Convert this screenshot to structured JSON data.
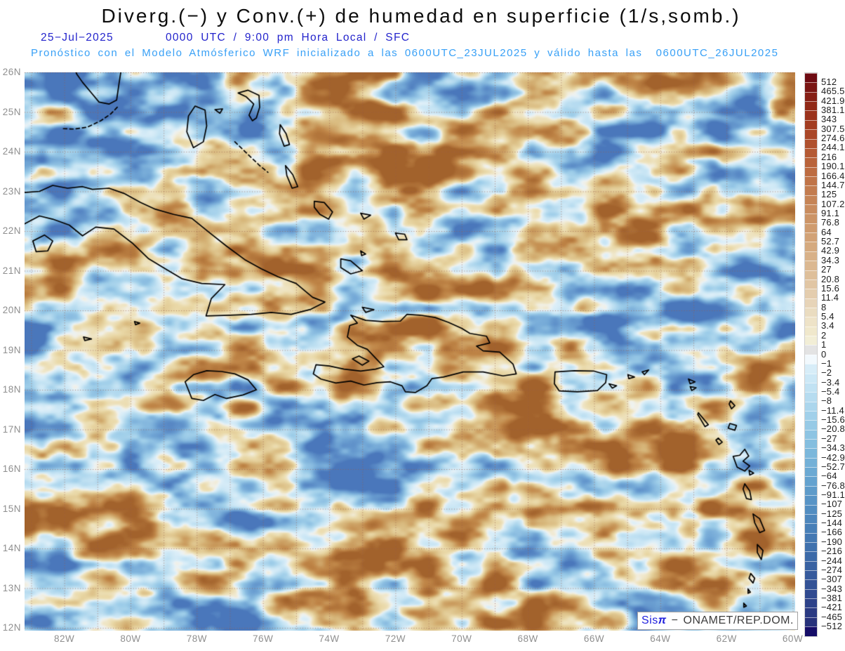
{
  "header": {
    "title": "Diverg.(−) y Conv.(+) de humedad en superficie (1/s,somb.)",
    "date": "25−Jul−2025",
    "valid_time": "0000 UTC / 9:00 pm Hora Local / SFC",
    "forecast_note": "Pronóstico con el Modelo Atmósferico WRF inicializado a las 0600UTC_23JUL2025 y válido hasta las  0600UTC_26JUL2025"
  },
  "map": {
    "lat_labels": [
      "26N",
      "25N",
      "24N",
      "23N",
      "22N",
      "21N",
      "20N",
      "19N",
      "18N",
      "17N",
      "16N",
      "15N",
      "14N",
      "13N",
      "12N"
    ],
    "lon_labels": [
      "82W",
      "80W",
      "78W",
      "76W",
      "74W",
      "72W",
      "70W",
      "68W",
      "66W",
      "64W",
      "62W",
      "60W"
    ]
  },
  "colorbar": {
    "labels": [
      "512",
      "465.5",
      "421.9",
      "381.1",
      "343",
      "307.5",
      "274.6",
      "244.1",
      "216",
      "190.1",
      "166.4",
      "144.7",
      "125",
      "107.2",
      "91.1",
      "76.8",
      "64",
      "52.7",
      "42.9",
      "34.3",
      "27",
      "20.8",
      "15.6",
      "11.4",
      "8",
      "5.4",
      "3.4",
      "2",
      "1",
      "0",
      "−1",
      "−2",
      "−3.4",
      "−5.4",
      "−8",
      "−11.4",
      "−15.6",
      "−20.8",
      "−27",
      "−34.3",
      "−42.9",
      "−52.7",
      "−64",
      "−76.8",
      "−91.1",
      "−107",
      "−125",
      "−144",
      "−166",
      "−190",
      "−216",
      "−244",
      "−274",
      "−307",
      "−343",
      "−381",
      "−421",
      "−465",
      "−512"
    ],
    "colors": [
      "#6e0b12",
      "#7a1513",
      "#861f15",
      "#912917",
      "#9b331c",
      "#a33d22",
      "#aa4728",
      "#b0512e",
      "#b55a34",
      "#b9633a",
      "#bd6c41",
      "#c07448",
      "#c37c4f",
      "#c68456",
      "#c98c5e",
      "#cc9466",
      "#cf9b6e",
      "#d2a276",
      "#d5aa7f",
      "#d8b188",
      "#dbb891",
      "#debf9a",
      "#e1c6a4",
      "#e4cdae",
      "#e7d4b8",
      "#eadcc0",
      "#eee3c8",
      "#f0e8cc",
      "#f2eed6",
      "#e3e3e3",
      "#f2f9fd",
      "#d7edf8",
      "#cce8f6",
      "#c1e2f3",
      "#b6dcf0",
      "#abd6ed",
      "#a1d0ea",
      "#97cae6",
      "#8dc4e3",
      "#84bedf",
      "#7bb7db",
      "#73b0d7",
      "#6ba9d3",
      "#64a2cf",
      "#5e9bca",
      "#5894c6",
      "#528dc1",
      "#4d86bc",
      "#487fb7",
      "#4478b2",
      "#4071ad",
      "#3c6aa8",
      "#3962a2",
      "#365a9c",
      "#335296",
      "#304a90",
      "#2d4289",
      "#2a3a82",
      "#27327b",
      "#150d68"
    ]
  },
  "watermark": {
    "brand": "Sis",
    "pi": "π",
    "separator": "−",
    "org": "ONAMET/REP.DOM."
  },
  "colors": {
    "title_text": "#0d0d0d",
    "date_line": "#2323cc",
    "forecast_line": "#38a0f6",
    "axis_labels": "#8f8f8f",
    "colorbar_labels": "#1c1c1c",
    "coastline": "#000000",
    "grid_dots": "#9b5f4c",
    "watermark_brand": "#2222dd",
    "watermark_text": "#3c3c3c",
    "field_neutral": "#f1f1ec",
    "field_positive": [
      "#f3eed9",
      "#ead9a8",
      "#d8b87c",
      "#c08648",
      "#a2622c"
    ],
    "field_negative": [
      "#eaf5fb",
      "#c9e6f5",
      "#9dcde9",
      "#70a5d5",
      "#4a77bb"
    ]
  }
}
